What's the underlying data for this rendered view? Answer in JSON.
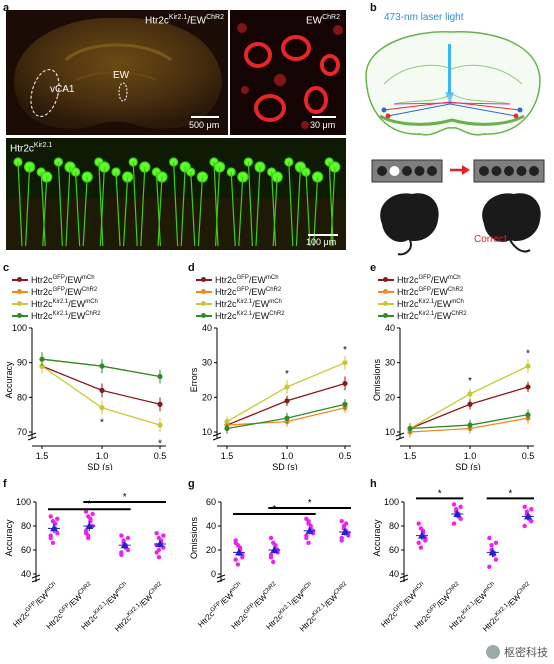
{
  "panels": {
    "a": "a",
    "b": "b",
    "c": "c",
    "d": "d",
    "e": "e",
    "f": "f",
    "g": "g",
    "h": "h"
  },
  "panel_a": {
    "title_main_base": "Htr2c",
    "title_main_sup": "Kir2.1",
    "title_main_mid": "/EW",
    "title_main_sup2": "ChR2",
    "title_inset_base": "EW",
    "title_inset_sup": "ChR2",
    "vca1": "vCA1",
    "ew": "EW",
    "scale_main": "500 μm",
    "scale_inset": "30 μm",
    "lower_base": "Htr2c",
    "lower_sup": "Kir2.1",
    "scale_lower": "100 μm"
  },
  "panel_b": {
    "laser": "473-nm laser light",
    "correct": "Correct"
  },
  "legend": [
    {
      "base": "Htr2c",
      "sup1": "GFP",
      "mid": "/EW",
      "sup2": "mCh",
      "color": "#8b1a1a"
    },
    {
      "base": "Htr2c",
      "sup1": "GFP",
      "mid": "/EW",
      "sup2": "ChR2",
      "color": "#f08c1e"
    },
    {
      "base": "Htr2c",
      "sup1": "Kir2.1",
      "mid": "/EW",
      "sup2": "mCh",
      "color": "#c8c832"
    },
    {
      "base": "Htr2c",
      "sup1": "Kir2.1",
      "mid": "/EW",
      "sup2": "ChR2",
      "color": "#2e8b2e"
    }
  ],
  "colors": {
    "bar_dots": "#ee22ee",
    "bar_mean": "#2222cc"
  },
  "chart_data": [
    {
      "panel": "c",
      "type": "line",
      "xlabel": "SD (s)",
      "ylabel": "Accuracy",
      "x": [
        1.5,
        1.0,
        0.5
      ],
      "ylim": [
        70,
        100
      ],
      "yticks": [
        70,
        80,
        90,
        100
      ],
      "series": [
        {
          "name": "Htr2cGFP/EWmCh",
          "values": [
            89,
            82,
            78
          ],
          "err": [
            2,
            2,
            2
          ]
        },
        {
          "name": "Htr2cGFP/EWChR2",
          "values": [
            91,
            89,
            86
          ],
          "err": [
            2,
            2,
            2
          ]
        },
        {
          "name": "Htr2cKir2.1/EWmCh",
          "values": [
            89,
            77,
            72
          ],
          "err": [
            2,
            2,
            2
          ]
        },
        {
          "name": "Htr2cKir2.1/EWChR2",
          "values": [
            91,
            89,
            86
          ],
          "err": [
            2,
            2,
            2
          ]
        }
      ],
      "stars": [
        {
          "x": 1.0,
          "y": 73
        },
        {
          "x": 0.5,
          "y": 67
        }
      ]
    },
    {
      "panel": "d",
      "type": "line",
      "xlabel": "SD (s)",
      "ylabel": "Errors",
      "x": [
        1.5,
        1.0,
        0.5
      ],
      "ylim": [
        10,
        40
      ],
      "yticks": [
        10,
        20,
        30,
        40
      ],
      "series": [
        {
          "name": "Htr2cGFP/EWmCh",
          "values": [
            12,
            19,
            24
          ],
          "err": [
            1.5,
            1.5,
            2
          ]
        },
        {
          "name": "Htr2cGFP/EWChR2",
          "values": [
            12,
            13,
            17
          ],
          "err": [
            1.5,
            1.5,
            1.5
          ]
        },
        {
          "name": "Htr2cKir2.1/EWmCh",
          "values": [
            13,
            23,
            30
          ],
          "err": [
            1.5,
            2,
            2
          ]
        },
        {
          "name": "Htr2cKir2.1/EWChR2",
          "values": [
            11,
            14,
            18
          ],
          "err": [
            1.5,
            1.5,
            1.5
          ]
        }
      ],
      "stars": [
        {
          "x": 1.0,
          "y": 27
        },
        {
          "x": 0.5,
          "y": 34
        }
      ]
    },
    {
      "panel": "e",
      "type": "line",
      "xlabel": "SD (s)",
      "ylabel": "Omissions",
      "x": [
        1.5,
        1.0,
        0.5
      ],
      "ylim": [
        10,
        40
      ],
      "yticks": [
        10,
        20,
        30,
        40
      ],
      "series": [
        {
          "name": "Htr2cGFP/EWmCh",
          "values": [
            11,
            18,
            23
          ],
          "err": [
            1.5,
            1.5,
            1.5
          ]
        },
        {
          "name": "Htr2cGFP/EWChR2",
          "values": [
            10,
            11,
            14
          ],
          "err": [
            1.5,
            1.5,
            1.5
          ]
        },
        {
          "name": "Htr2cKir2.1/EWmCh",
          "values": [
            11,
            21,
            29
          ],
          "err": [
            1.5,
            1.5,
            2
          ]
        },
        {
          "name": "Htr2cKir2.1/EWChR2",
          "values": [
            11,
            12,
            15
          ],
          "err": [
            1.5,
            1.5,
            1.5
          ]
        }
      ],
      "stars": [
        {
          "x": 1.0,
          "y": 25
        },
        {
          "x": 0.5,
          "y": 33
        }
      ]
    },
    {
      "panel": "f",
      "type": "scatter",
      "ylabel": "Accuracy",
      "categories": [
        "Htr2cGFP/EWmCh",
        "Htr2cGFP/EWChR2",
        "Htr2cKir2.1/EWmCh",
        "Htr2cKir2.1/EWChR2"
      ],
      "ylim": [
        40,
        100
      ],
      "yticks": [
        40,
        60,
        80,
        100
      ],
      "means": [
        78,
        80,
        64,
        65
      ],
      "sems": [
        4,
        4,
        3,
        3
      ],
      "points": [
        [
          88,
          84,
          78,
          74,
          70,
          66,
          82,
          86,
          72
        ],
        [
          92,
          88,
          84,
          80,
          76,
          72,
          86,
          90,
          74,
          70
        ],
        [
          72,
          68,
          64,
          60,
          58,
          66,
          62,
          70,
          56
        ],
        [
          74,
          70,
          66,
          62,
          58,
          54,
          68,
          72,
          64,
          60
        ]
      ],
      "sig": [
        {
          "from": 0,
          "to": 2,
          "y": 94
        },
        {
          "from": 1,
          "to": 3,
          "y": 100
        }
      ]
    },
    {
      "panel": "g",
      "type": "scatter",
      "ylabel": "Omissions",
      "categories": [
        "Htr2cGFP/EWmCh",
        "Htr2cGFP/EWChR2",
        "Htr2cKir2.1/EWmCh",
        "Htr2cKir2.1/EWChR2"
      ],
      "ylim": [
        0,
        60
      ],
      "yticks": [
        0,
        20,
        40,
        60
      ],
      "means": [
        18,
        20,
        36,
        35
      ],
      "sems": [
        3,
        3,
        3,
        3
      ],
      "points": [
        [
          28,
          24,
          20,
          16,
          12,
          8,
          22,
          14,
          26
        ],
        [
          30,
          26,
          22,
          18,
          14,
          10,
          24,
          20,
          16
        ],
        [
          46,
          42,
          38,
          34,
          30,
          26,
          40,
          36,
          32,
          44
        ],
        [
          44,
          40,
          36,
          32,
          28,
          38,
          42,
          34,
          30
        ]
      ],
      "sig": [
        {
          "from": 0,
          "to": 2,
          "y": 50
        },
        {
          "from": 1,
          "to": 3,
          "y": 55
        }
      ]
    },
    {
      "panel": "h",
      "type": "scatter",
      "ylabel": "Accuracy",
      "categories": [
        "Htr2cGFP/EWmCh",
        "Htr2cGFP/EWChR2",
        "Htr2cKir2.1/EWmCh",
        "Htr2cKir2.1/EWChR2"
      ],
      "ylim": [
        40,
        100
      ],
      "yticks": [
        40,
        60,
        80,
        100
      ],
      "means": [
        72,
        90,
        58,
        88
      ],
      "sems": [
        4,
        3,
        4,
        3
      ],
      "points": [
        [
          82,
          78,
          74,
          70,
          66,
          62,
          76,
          68
        ],
        [
          98,
          94,
          90,
          86,
          82,
          92,
          88,
          96
        ],
        [
          70,
          64,
          58,
          52,
          46,
          60,
          56,
          66
        ],
        [
          96,
          92,
          88,
          84,
          80,
          90,
          86,
          94
        ]
      ],
      "sig": [
        {
          "from": 0,
          "to": 1,
          "y": 103
        },
        {
          "from": 2,
          "to": 3,
          "y": 103
        }
      ]
    }
  ],
  "watermark": "枢密科技"
}
